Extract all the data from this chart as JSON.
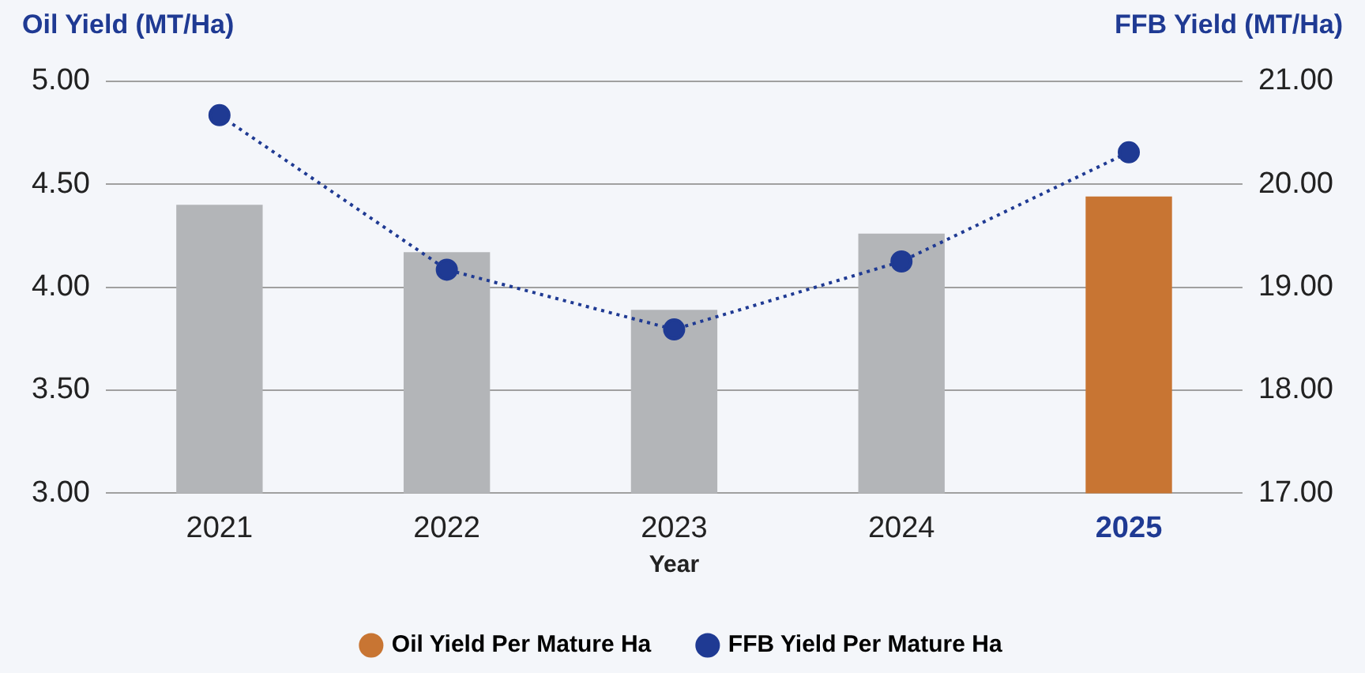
{
  "chart_data": {
    "type": "bar",
    "xlabel": "Year",
    "ylabel": "Oil Yield (MT/Ha)",
    "y2label": "FFB Yield (MT/Ha)",
    "categories": [
      "2021",
      "2022",
      "2023",
      "2024",
      "2025"
    ],
    "series": [
      {
        "name": "Oil Yield Per Mature Ha",
        "colors": [
          "#b3b5b8",
          "#b3b5b8",
          "#b3b5b8",
          "#b3b5b8",
          "#c87533"
        ],
        "values": [
          4.4,
          4.17,
          3.89,
          4.26,
          4.44
        ]
      },
      {
        "name": "FFB Yield Per Mature Ha",
        "type": "line",
        "axis": "y2",
        "color": "#1f3a93",
        "marker": "circle",
        "line_style": "dotted",
        "values": [
          20.67,
          19.17,
          18.59,
          19.25,
          20.31
        ]
      }
    ],
    "ylim": [
      3,
      5
    ],
    "yticks": [
      {
        "value": 3,
        "label": "3.00"
      },
      {
        "value": 3.5,
        "label": "3.50"
      },
      {
        "value": 4,
        "label": "4.00"
      },
      {
        "value": 4.5,
        "label": "4.50"
      },
      {
        "value": 5,
        "label": "5.00"
      }
    ],
    "y2lim": [
      17,
      21
    ],
    "y2ticks": [
      {
        "value": 17,
        "label": "17.00"
      },
      {
        "value": 18,
        "label": "18.00"
      },
      {
        "value": 19,
        "label": "19.00"
      },
      {
        "value": 20,
        "label": "20.00"
      },
      {
        "value": 21,
        "label": "21.00"
      }
    ],
    "grid": "y",
    "legend": "bottom"
  }
}
